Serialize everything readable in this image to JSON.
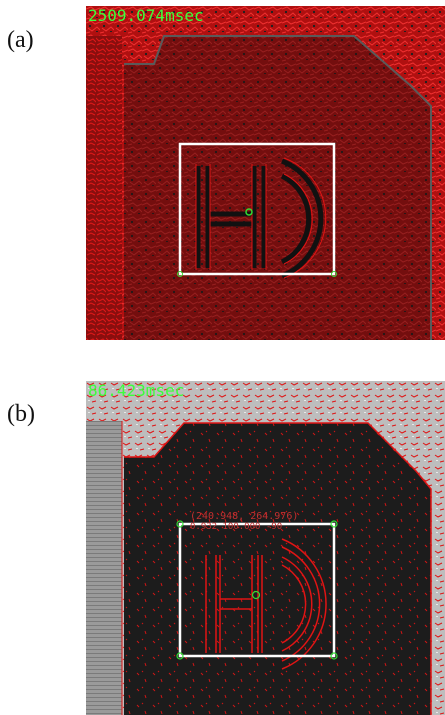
{
  "figure": {
    "panels": [
      {
        "label": "(a)",
        "timing_text": "2509.074msec",
        "readout_lines": []
      },
      {
        "label": "(b)",
        "timing_text": "86.423msec",
        "readout_lines": [
          "(240.948, 264.976)",
          "0.932  100.000  -90"
        ]
      }
    ],
    "colors": {
      "edge": "#e01414",
      "overlay_text": "#3cff3c",
      "box": "#ffffff",
      "marker": "#33dd33",
      "surface": "#1c1c1c",
      "background_a": "#c81010",
      "background_b": "#b8b8b8"
    }
  }
}
